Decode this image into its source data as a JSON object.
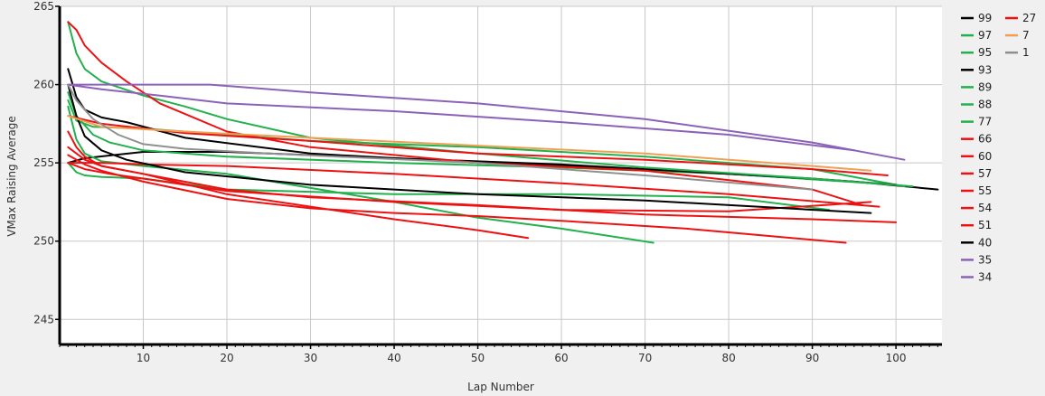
{
  "chart_data": {
    "type": "line",
    "title": "",
    "xlabel": "Lap Number",
    "ylabel": "VMax Raising Average",
    "xlim": [
      0,
      105.5
    ],
    "ylim": [
      243.4,
      265
    ],
    "xticks": [
      10,
      20,
      30,
      40,
      50,
      60,
      70,
      80,
      90,
      100
    ],
    "yticks": [
      245,
      250,
      255,
      260,
      265
    ],
    "grid": true,
    "legend_position": "right",
    "series": [
      {
        "name": "99",
        "color": "#000000",
        "points": [
          [
            1,
            255.0
          ],
          [
            3,
            255.3
          ],
          [
            10,
            255.7
          ],
          [
            20,
            255.7
          ],
          [
            40,
            255.3
          ],
          [
            60,
            254.9
          ],
          [
            80,
            254.3
          ],
          [
            95,
            253.8
          ],
          [
            105,
            253.3
          ]
        ]
      },
      {
        "name": "97",
        "color": "#22b14c",
        "points": [
          [
            1,
            259.5
          ],
          [
            2,
            258.0
          ],
          [
            4,
            256.8
          ],
          [
            6,
            256.3
          ],
          [
            10,
            255.8
          ],
          [
            20,
            255.4
          ],
          [
            40,
            255.0
          ],
          [
            60,
            254.7
          ],
          [
            80,
            254.3
          ],
          [
            100,
            253.6
          ]
        ]
      },
      {
        "name": "95",
        "color": "#22b14c",
        "points": [
          [
            1,
            259.0
          ],
          [
            2,
            257.7
          ],
          [
            4,
            257.3
          ],
          [
            10,
            257.2
          ],
          [
            20,
            256.8
          ],
          [
            30,
            256.4
          ],
          [
            50,
            256.0
          ],
          [
            70,
            255.4
          ],
          [
            90,
            254.6
          ],
          [
            101,
            253.5
          ]
        ]
      },
      {
        "name": "93",
        "color": "#000000",
        "points": [
          [
            1,
            261.0
          ],
          [
            2,
            259.2
          ],
          [
            3,
            258.4
          ],
          [
            5,
            257.9
          ],
          [
            8,
            257.6
          ],
          [
            15,
            256.6
          ],
          [
            30,
            255.6
          ],
          [
            50,
            255.0
          ],
          [
            70,
            254.6
          ],
          [
            90,
            254.0
          ],
          [
            100,
            253.6
          ]
        ]
      },
      {
        "name": "89",
        "color": "#22b14c",
        "points": [
          [
            1,
            258.6
          ],
          [
            2,
            256.5
          ],
          [
            3,
            255.6
          ],
          [
            5,
            255.1
          ],
          [
            10,
            254.8
          ],
          [
            20,
            254.3
          ],
          [
            40,
            252.5
          ],
          [
            50,
            251.5
          ],
          [
            60,
            250.8
          ],
          [
            71,
            249.9
          ]
        ]
      },
      {
        "name": "88",
        "color": "#22b14c",
        "points": [
          [
            1,
            264.0
          ],
          [
            2,
            262.0
          ],
          [
            3,
            261.0
          ],
          [
            5,
            260.2
          ],
          [
            10,
            259.3
          ],
          [
            15,
            258.6
          ],
          [
            20,
            257.8
          ],
          [
            30,
            256.6
          ],
          [
            50,
            255.6
          ],
          [
            70,
            254.7
          ],
          [
            90,
            254.0
          ],
          [
            102,
            253.5
          ]
        ]
      },
      {
        "name": "77",
        "color": "#22b14c",
        "points": [
          [
            1,
            255.0
          ],
          [
            2,
            254.4
          ],
          [
            3,
            254.2
          ],
          [
            5,
            254.1
          ],
          [
            10,
            254.0
          ],
          [
            20,
            253.3
          ],
          [
            40,
            253.0
          ],
          [
            60,
            253.0
          ],
          [
            80,
            252.8
          ],
          [
            92,
            252.0
          ]
        ]
      },
      {
        "name": "66",
        "color": "#ee1111",
        "points": [
          [
            1,
            264.0
          ],
          [
            2,
            263.5
          ],
          [
            3,
            262.5
          ],
          [
            5,
            261.4
          ],
          [
            8,
            260.2
          ],
          [
            12,
            258.8
          ],
          [
            20,
            257.0
          ],
          [
            30,
            256.0
          ],
          [
            50,
            255.0
          ],
          [
            70,
            254.5
          ],
          [
            90,
            253.3
          ],
          [
            96,
            252.3
          ]
        ]
      },
      {
        "name": "60",
        "color": "#ee1111",
        "points": [
          [
            1,
            255.0
          ],
          [
            5,
            255.0
          ],
          [
            10,
            254.9
          ],
          [
            20,
            254.8
          ],
          [
            40,
            254.3
          ],
          [
            60,
            253.7
          ],
          [
            80,
            253.0
          ],
          [
            98,
            252.2
          ]
        ]
      },
      {
        "name": "57",
        "color": "#ee1111",
        "points": [
          [
            1,
            255.0
          ],
          [
            3,
            254.6
          ],
          [
            6,
            254.3
          ],
          [
            10,
            254.0
          ],
          [
            20,
            253.2
          ],
          [
            40,
            252.5
          ],
          [
            60,
            252.0
          ],
          [
            80,
            251.9
          ],
          [
            97,
            252.5
          ]
        ]
      },
      {
        "name": "55",
        "color": "#ee1111",
        "points": [
          [
            1,
            257.0
          ],
          [
            2,
            256.0
          ],
          [
            3,
            255.4
          ],
          [
            5,
            254.8
          ],
          [
            10,
            254.3
          ],
          [
            20,
            253.0
          ],
          [
            30,
            252.2
          ],
          [
            40,
            251.4
          ],
          [
            50,
            250.7
          ],
          [
            56,
            250.2
          ]
        ]
      },
      {
        "name": "54",
        "color": "#ee1111",
        "points": [
          [
            1,
            256.0
          ],
          [
            3,
            255.2
          ],
          [
            5,
            254.8
          ],
          [
            10,
            254.3
          ],
          [
            20,
            253.3
          ],
          [
            30,
            252.8
          ],
          [
            50,
            252.3
          ],
          [
            70,
            251.7
          ],
          [
            90,
            251.4
          ],
          [
            100,
            251.2
          ]
        ]
      },
      {
        "name": "51",
        "color": "#ee1111",
        "points": [
          [
            1,
            255.5
          ],
          [
            3,
            254.9
          ],
          [
            5,
            254.5
          ],
          [
            10,
            253.8
          ],
          [
            20,
            252.7
          ],
          [
            30,
            252.1
          ],
          [
            40,
            251.8
          ],
          [
            50,
            251.6
          ],
          [
            60,
            251.3
          ],
          [
            75,
            250.8
          ],
          [
            94,
            249.9
          ]
        ]
      },
      {
        "name": "40",
        "color": "#000000",
        "points": [
          [
            1,
            260.0
          ],
          [
            2,
            258.0
          ],
          [
            3,
            256.7
          ],
          [
            5,
            255.8
          ],
          [
            8,
            255.2
          ],
          [
            15,
            254.4
          ],
          [
            30,
            253.6
          ],
          [
            50,
            253.0
          ],
          [
            70,
            252.6
          ],
          [
            97,
            251.8
          ]
        ]
      },
      {
        "name": "35",
        "color": "#8b62b8",
        "points": [
          [
            1,
            260.0
          ],
          [
            5,
            260.0
          ],
          [
            10,
            260.0
          ],
          [
            18,
            260.0
          ],
          [
            30,
            259.5
          ],
          [
            50,
            258.8
          ],
          [
            70,
            257.8
          ],
          [
            90,
            256.3
          ],
          [
            101,
            255.2
          ]
        ]
      },
      {
        "name": "34",
        "color": "#8b62b8",
        "points": [
          [
            1,
            260.0
          ],
          [
            5,
            259.7
          ],
          [
            12,
            259.3
          ],
          [
            20,
            258.8
          ],
          [
            40,
            258.3
          ],
          [
            60,
            257.6
          ],
          [
            80,
            256.8
          ],
          [
            95,
            255.8
          ]
        ]
      },
      {
        "name": "27",
        "color": "#ee1111",
        "points": [
          [
            1,
            258.0
          ],
          [
            5,
            257.5
          ],
          [
            15,
            256.9
          ],
          [
            30,
            256.4
          ],
          [
            50,
            255.6
          ],
          [
            70,
            255.2
          ],
          [
            90,
            254.6
          ],
          [
            99,
            254.2
          ]
        ]
      },
      {
        "name": "7",
        "color": "#f0a055",
        "points": [
          [
            1,
            258.0
          ],
          [
            5,
            257.3
          ],
          [
            15,
            257.0
          ],
          [
            30,
            256.6
          ],
          [
            50,
            256.1
          ],
          [
            70,
            255.6
          ],
          [
            90,
            254.8
          ],
          [
            97,
            254.5
          ]
        ]
      },
      {
        "name": "1",
        "color": "#909090",
        "points": [
          [
            1,
            260.0
          ],
          [
            2,
            259.0
          ],
          [
            4,
            257.8
          ],
          [
            7,
            256.8
          ],
          [
            10,
            256.2
          ],
          [
            15,
            255.9
          ],
          [
            25,
            255.6
          ],
          [
            50,
            255.0
          ],
          [
            70,
            254.2
          ],
          [
            90,
            253.3
          ]
        ]
      }
    ]
  }
}
